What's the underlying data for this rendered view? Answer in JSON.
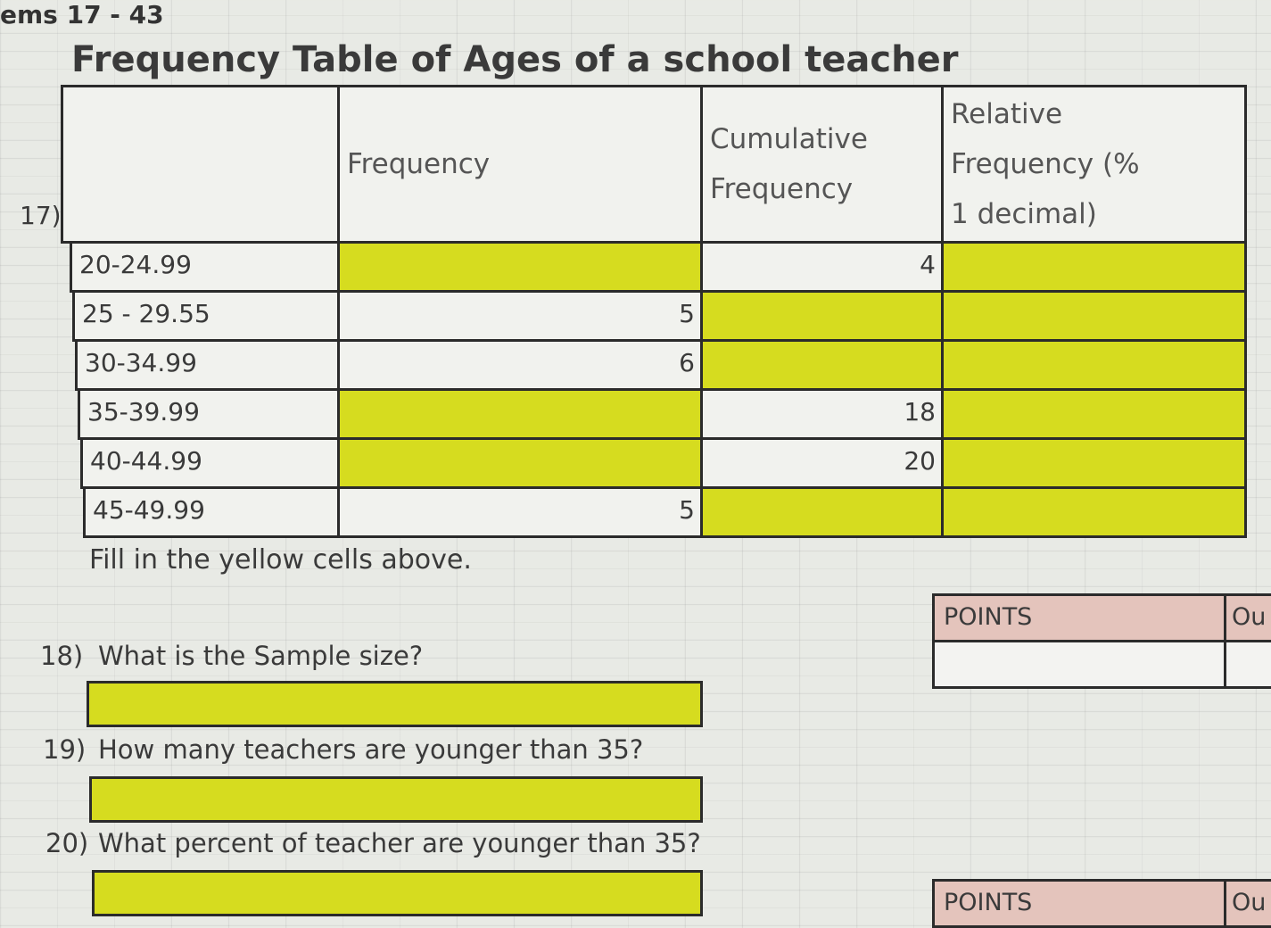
{
  "header": {
    "section": "ems 17 - 43",
    "title": "Frequency Table of Ages of a school teacher"
  },
  "table": {
    "number": "17)",
    "columns": [
      "Frequency",
      "Cumulative Frequency",
      "Relative Frequency (% 1 decimal)"
    ],
    "rows": [
      {
        "label": "20-24.99",
        "cells": [
          null,
          4,
          null
        ]
      },
      {
        "label": "25 - 29.55",
        "cells": [
          5,
          null,
          null
        ]
      },
      {
        "label": "30-34.99",
        "cells": [
          6,
          null,
          null
        ]
      },
      {
        "label": "35-39.99",
        "cells": [
          null,
          18,
          null
        ]
      },
      {
        "label": "40-44.99",
        "cells": [
          null,
          20,
          null
        ]
      },
      {
        "label": "45-49.99",
        "cells": [
          5,
          null,
          null
        ]
      }
    ]
  },
  "instruction": "Fill in the yellow cells above.",
  "questions": [
    {
      "number": "18)",
      "text": "What is the Sample size?"
    },
    {
      "number": "19)",
      "text": "How many teachers are younger than 35?"
    },
    {
      "number": "20)",
      "text": "What percent of teacher are younger than 35?"
    }
  ],
  "points_boxes": [
    {
      "label": "POINTS",
      "side": "Ou"
    },
    {
      "label": "POINTS",
      "side": "Ou"
    }
  ]
}
